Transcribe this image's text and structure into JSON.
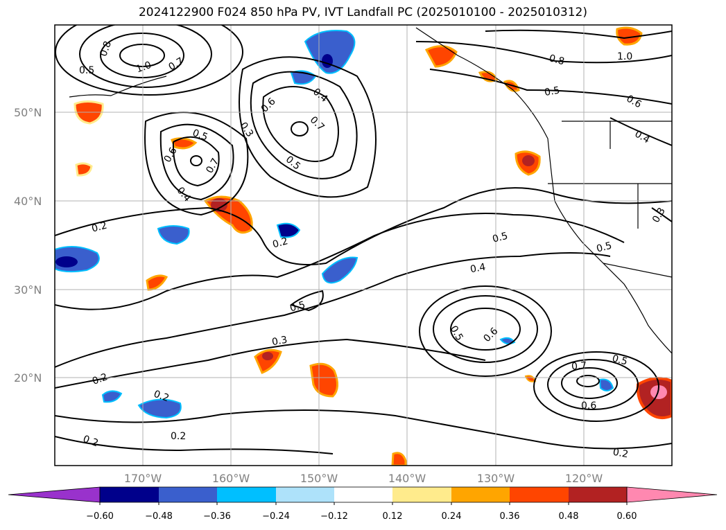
{
  "title": "2024122900 F024 850 hPa PV, IVT Landfall PC (2025010100 - 2025010312)",
  "map": {
    "lat_labels": [
      "50°N",
      "40°N",
      "30°N",
      "20°N"
    ],
    "lon_labels": [
      "170°W",
      "160°W",
      "150°W",
      "140°W",
      "130°W",
      "120°W"
    ],
    "contour_labels": [
      "0.8",
      "0.5",
      "1.0",
      "0.7",
      "0.6",
      "0.4",
      "0.7",
      "0.3",
      "0.5",
      "0.6",
      "0.5",
      "0.7",
      "0.4",
      "0.2",
      "0.2",
      "0.5",
      "0.4",
      "0.5",
      "0.3",
      "0.5",
      "0.6",
      "0.7",
      "0.5",
      "0.6",
      "0.2",
      "0.2",
      "0.2",
      "0.2",
      "0.8",
      "1.0",
      "0.5",
      "0.6",
      "0.4",
      "0.3",
      "0.5",
      "0.2"
    ],
    "grid_color": "#b0b0b0",
    "label_color": "#808080"
  },
  "colorbar": {
    "ticks": [
      "−0.60",
      "−0.48",
      "−0.36",
      "−0.24",
      "−0.12",
      "0.12",
      "0.24",
      "0.36",
      "0.48",
      "0.60"
    ],
    "colors": [
      "#9932cc",
      "#00008b",
      "#3a5fcd",
      "#00bfff",
      "#aee2fa",
      "#ffffff",
      "#ffeb8c",
      "#ffa500",
      "#ff4500",
      "#b22222",
      "#ff88b0"
    ]
  }
}
